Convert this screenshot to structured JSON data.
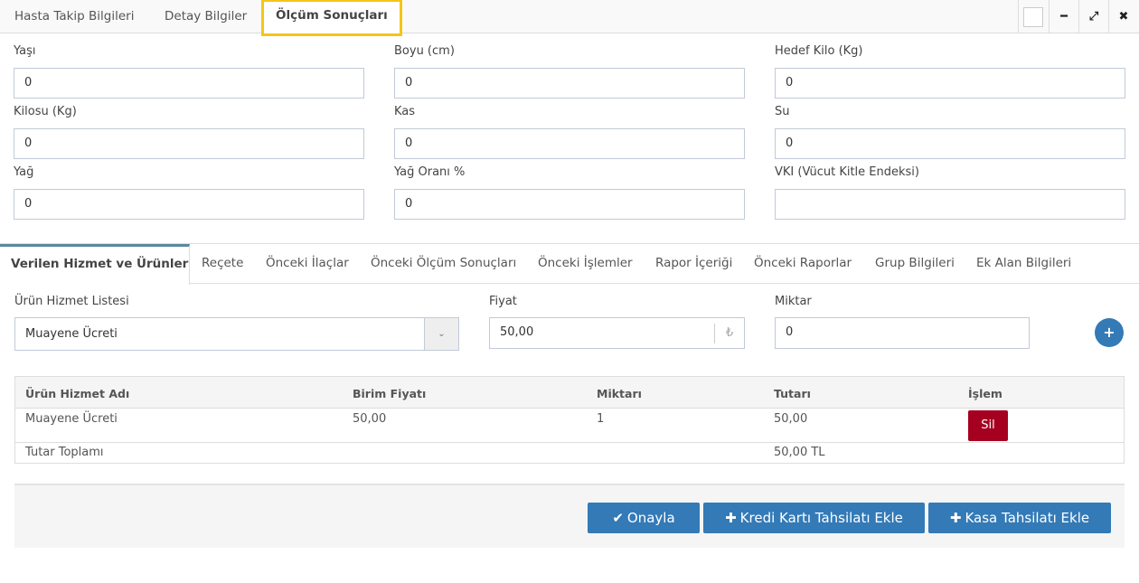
{
  "top_tabs": [
    "Hasta Takip Bilgileri",
    "Detay Bilgiler",
    "Ölçüm Sonuçları"
  ],
  "window_icons": [
    "restore-icon",
    "minimize-icon",
    "expand-icon",
    "close-icon"
  ],
  "fields": [
    {
      "label": "Yaşı",
      "value": "0"
    },
    {
      "label": "Boyu (cm)",
      "value": "0"
    },
    {
      "label": "Hedef Kilo (Kg)",
      "value": "0"
    },
    {
      "label": "Kilosu (Kg)",
      "value": "0"
    },
    {
      "label": "Kas",
      "value": "0"
    },
    {
      "label": "Su",
      "value": "0"
    },
    {
      "label": "Yağ",
      "value": "0"
    },
    {
      "label": "Yağ Oranı %",
      "value": "0"
    },
    {
      "label": "VKI (Vücut Kitle Endeksi)",
      "value": ""
    }
  ],
  "sub_tabs": [
    "Verilen Hizmet ve Ürünler",
    "Reçete",
    "Önceki İlaçlar",
    "Önceki Ölçüm Sonuçları",
    "Önceki İşlemler",
    "Rapor İçeriği",
    "Önceki Raporlar",
    "Grup Bilgileri",
    "Ek Alan Bilgileri"
  ],
  "product": {
    "list_label": "Ürün Hizmet Listesi",
    "list_value": "Muayene Ücreti",
    "price_label": "Fiyat",
    "price_value": "50,00",
    "currency": "₺",
    "qty_label": "Miktar",
    "qty_value": "0"
  },
  "table": {
    "headers": [
      "Ürün Hizmet Adı",
      "Birim Fiyatı",
      "Miktarı",
      "Tutarı",
      "İşlem"
    ],
    "rows": [
      {
        "name": "Muayene Ücreti",
        "unit": "50,00",
        "qty": "1",
        "total": "50,00",
        "action": "Sil"
      }
    ],
    "total_label": "Tutar Toplamı",
    "total_value": "50,00 TL"
  },
  "footer": {
    "approve": "Onayla",
    "credit": "Kredi Kartı Tahsilatı Ekle",
    "cash": "Kasa Tahsilatı Ekle"
  },
  "colors": {
    "primary": "#337ab7",
    "danger": "#a50020",
    "highlight": "#f5c518"
  }
}
